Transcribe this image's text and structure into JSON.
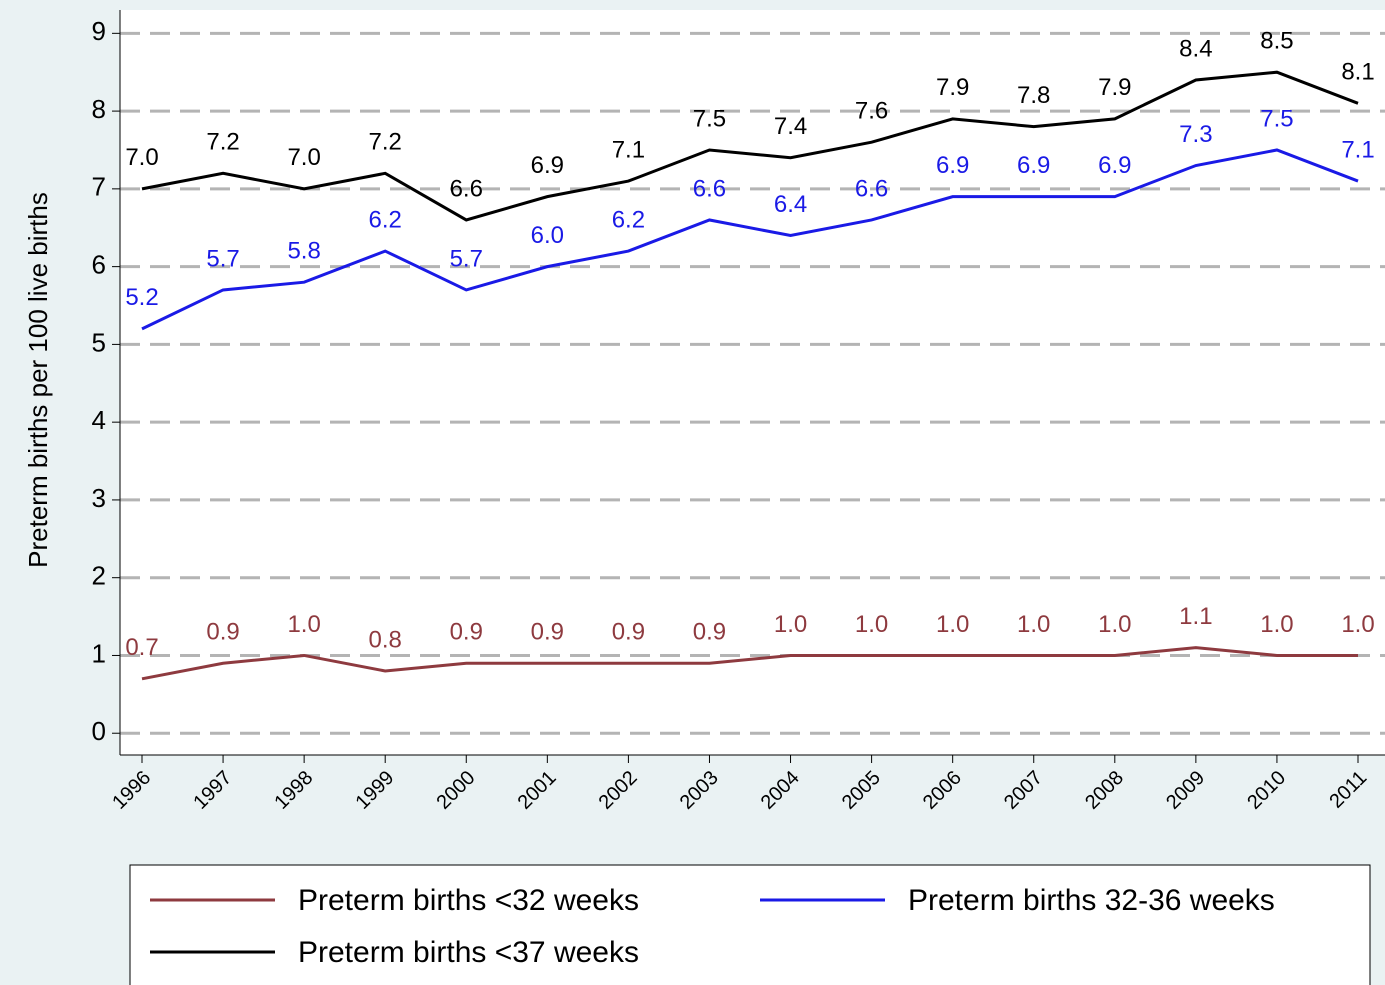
{
  "chart_data": {
    "type": "line",
    "y_label": "Preterm births per 100 live births",
    "categories": [
      "1996",
      "1997",
      "1998",
      "1999",
      "2000",
      "2001",
      "2002",
      "2003",
      "2004",
      "2005",
      "2006",
      "2007",
      "2008",
      "2009",
      "2010",
      "2011"
    ],
    "series": [
      {
        "name": "Preterm births <32 weeks",
        "color": "#8e3a3f",
        "values": [
          0.7,
          0.9,
          1.0,
          0.8,
          0.9,
          0.9,
          0.9,
          0.9,
          1.0,
          1.0,
          1.0,
          1.0,
          1.0,
          1.1,
          1.0,
          1.0
        ],
        "value_labels": [
          "0.7",
          "0.9",
          "1.0",
          "0.8",
          "0.9",
          "0.9",
          "0.9",
          "0.9",
          "1.0",
          "1.0",
          "1.0",
          "1.0",
          "1.0",
          "1.1",
          "1.0",
          "1.0"
        ]
      },
      {
        "name": "Preterm births 32-36 weeks",
        "color": "#1a1ae6",
        "values": [
          5.2,
          5.7,
          5.8,
          6.2,
          5.7,
          6.0,
          6.2,
          6.6,
          6.4,
          6.6,
          6.9,
          6.9,
          6.9,
          7.3,
          7.5,
          7.1
        ],
        "value_labels": [
          "5.2",
          "5.7",
          "5.8",
          "6.2",
          "5.7",
          "6.0",
          "6.2",
          "6.6",
          "6.4",
          "6.6",
          "6.9",
          "6.9",
          "6.9",
          "7.3",
          "7.5",
          "7.1"
        ]
      },
      {
        "name": "Preterm births <37 weeks",
        "color": "#000000",
        "values": [
          7.0,
          7.2,
          7.0,
          7.2,
          6.6,
          6.9,
          7.1,
          7.5,
          7.4,
          7.6,
          7.9,
          7.8,
          7.9,
          8.4,
          8.5,
          8.1
        ],
        "value_labels": [
          "7.0",
          "7.2",
          "7.0",
          "7.2",
          "6.6",
          "6.9",
          "7.1",
          "7.5",
          "7.4",
          "7.6",
          "7.9",
          "7.8",
          "7.9",
          "8.4",
          "8.5",
          "8.1"
        ]
      }
    ],
    "ylim": [
      -0.28,
      9.3
    ],
    "yticks": [
      0,
      1,
      2,
      3,
      4,
      5,
      6,
      7,
      8,
      9
    ],
    "grid": true,
    "legend": "bottom"
  }
}
